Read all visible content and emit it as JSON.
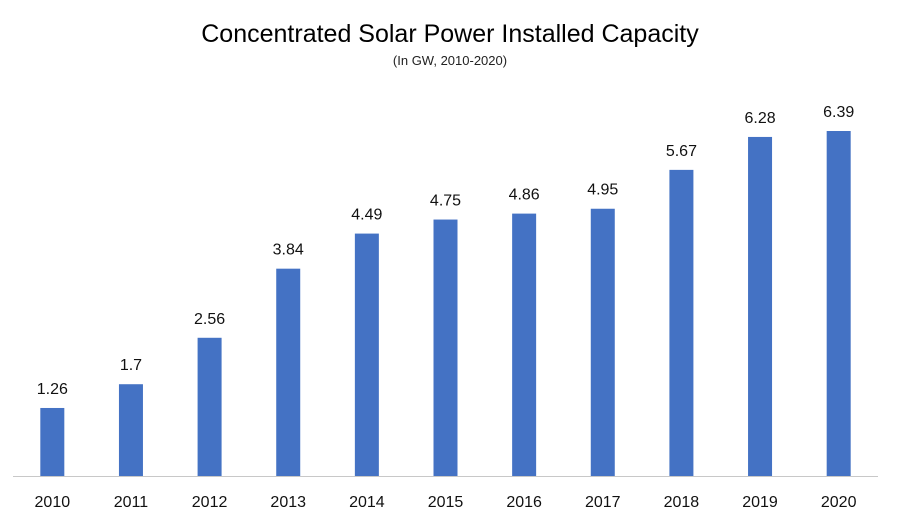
{
  "chart_data": {
    "type": "bar",
    "title": "Concentrated Solar Power Installed Capacity",
    "subtitle": "(In GW, 2010-2020)",
    "xlabel": "",
    "ylabel": "",
    "categories": [
      "2010",
      "2011",
      "2012",
      "2013",
      "2014",
      "2015",
      "2016",
      "2017",
      "2018",
      "2019",
      "2020"
    ],
    "values": [
      1.26,
      1.7,
      2.56,
      3.84,
      4.49,
      4.75,
      4.86,
      4.95,
      5.67,
      6.28,
      6.39
    ],
    "data_labels": [
      "1.26",
      "1.7",
      "2.56",
      "3.84",
      "4.49",
      "4.75",
      "4.86",
      "4.95",
      "5.67",
      "6.28",
      "6.39"
    ],
    "ylim": [
      0,
      6.39
    ],
    "grid": false,
    "legend": "none",
    "bar_color": "#4472C4"
  }
}
